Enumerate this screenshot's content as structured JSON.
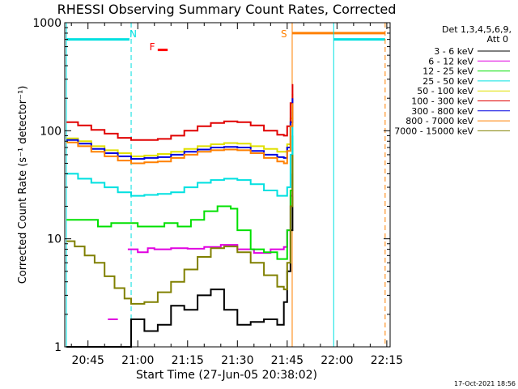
{
  "chart_data": {
    "type": "line",
    "title": "RHESSI Observing Summary Count Rates, Corrected",
    "xlabel": "Start Time (27-Jun-05 20:38:02)",
    "ylabel": "Corrected Count Rate (s⁻¹ detector⁻¹)",
    "yscale": "log",
    "ylim": [
      1,
      1000
    ],
    "xlim": [
      38,
      136
    ],
    "x_unit": "minutes after 20:00 UT",
    "x_ticks": [
      {
        "value": 45,
        "label": "20:45"
      },
      {
        "value": 60,
        "label": "21:00"
      },
      {
        "value": 75,
        "label": "21:15"
      },
      {
        "value": 90,
        "label": "21:30"
      },
      {
        "value": 105,
        "label": "21:45"
      },
      {
        "value": 120,
        "label": "22:00"
      },
      {
        "value": 135,
        "label": "22:15"
      }
    ],
    "y_ticks": [
      {
        "value": 1,
        "label": "1"
      },
      {
        "value": 10,
        "label": "10"
      },
      {
        "value": 100,
        "label": "100"
      },
      {
        "value": 1000,
        "label": "1000"
      }
    ],
    "legend": {
      "header": [
        "Det 1,3,4,5,6,9,",
        "Att 0"
      ],
      "placement": "right"
    },
    "series": [
      {
        "name": "3 - 6 keV",
        "color": "#000000",
        "x": [
          38.5,
          57,
          58,
          62,
          66,
          70,
          74,
          78,
          82,
          86,
          90,
          94,
          98,
          102,
          104,
          105,
          106,
          106.6
        ],
        "y": [
          1,
          1,
          1.8,
          1.4,
          1.6,
          2.4,
          2.2,
          3.0,
          3.4,
          2.2,
          1.6,
          1.7,
          1.8,
          1.6,
          2.6,
          5,
          12,
          40
        ]
      },
      {
        "name": "6 - 12 keV",
        "color": "#e000e0",
        "x": [
          51,
          54,
          56,
          57,
          60,
          63,
          65,
          70,
          75,
          80,
          85,
          90,
          95,
          100,
          104,
          105,
          106,
          106.6
        ],
        "y": [
          1.8,
          1.8,
          null,
          8,
          7.5,
          8.2,
          8.0,
          8.2,
          8.1,
          8.4,
          8.8,
          8.0,
          7.4,
          8.0,
          8.4,
          12,
          25,
          70
        ]
      },
      {
        "name": "12 - 25 keV",
        "color": "#00e000",
        "x": [
          38.5,
          44,
          45,
          48,
          52,
          56,
          60,
          64,
          68,
          72,
          76,
          80,
          84,
          88,
          90,
          94,
          98,
          102,
          104,
          105,
          106,
          106.6
        ],
        "y": [
          15,
          15,
          15,
          13,
          14,
          14,
          13,
          13,
          14,
          13,
          15,
          18,
          20,
          19,
          12,
          8,
          7.5,
          6.5,
          6.5,
          12,
          28,
          90
        ]
      },
      {
        "name": "25 - 50 keV",
        "color": "#00e0e0",
        "x": [
          38.5,
          42,
          46,
          50,
          54,
          58,
          62,
          66,
          70,
          74,
          78,
          82,
          86,
          90,
          94,
          98,
          102,
          104,
          105,
          106,
          106.6
        ],
        "y": [
          40,
          36,
          33,
          30,
          27,
          25,
          25.5,
          26,
          27,
          30,
          33,
          35,
          36,
          35,
          32,
          28,
          25,
          25,
          30,
          60,
          150
        ]
      },
      {
        "name": "50 - 100 keV",
        "color": "#e0e000",
        "x": [
          38.5,
          42,
          46,
          50,
          54,
          58,
          62,
          66,
          70,
          74,
          78,
          82,
          86,
          90,
          94,
          98,
          102,
          104,
          105,
          106,
          106.6
        ],
        "y": [
          85,
          80,
          72,
          66,
          62,
          58,
          59,
          61,
          64,
          68,
          72,
          75,
          77,
          76,
          72,
          68,
          64,
          64,
          75,
          130,
          220
        ]
      },
      {
        "name": "100 - 300 keV",
        "color": "#e00000",
        "x": [
          38.5,
          42,
          46,
          50,
          54,
          58,
          62,
          66,
          70,
          74,
          78,
          82,
          86,
          90,
          94,
          98,
          102,
          104,
          105,
          106,
          106.6
        ],
        "y": [
          120,
          112,
          102,
          94,
          86,
          82,
          82,
          84,
          90,
          100,
          110,
          118,
          122,
          120,
          112,
          100,
          92,
          90,
          110,
          180,
          270
        ]
      },
      {
        "name": "300 - 800 keV",
        "color": "#0000e0",
        "x": [
          38.5,
          42,
          46,
          50,
          54,
          58,
          62,
          66,
          70,
          74,
          78,
          82,
          86,
          90,
          94,
          98,
          102,
          104,
          105,
          106,
          106.6
        ],
        "y": [
          82,
          76,
          68,
          62,
          58,
          55,
          56,
          57,
          60,
          64,
          67,
          70,
          71,
          70,
          65,
          60,
          57,
          56,
          70,
          120,
          200
        ]
      },
      {
        "name": "800 - 7000 keV",
        "color": "#ff8000",
        "x": [
          38.5,
          42,
          46,
          50,
          54,
          58,
          62,
          66,
          70,
          74,
          78,
          82,
          86,
          90,
          94,
          98,
          102,
          104,
          105,
          106,
          106.6
        ],
        "y": [
          78,
          72,
          64,
          58,
          53,
          50,
          51,
          52,
          56,
          60,
          64,
          66,
          67,
          66,
          62,
          56,
          52,
          50,
          65,
          110,
          180
        ]
      },
      {
        "name": "7000 - 15000 keV",
        "color": "#808000",
        "x": [
          38.5,
          41,
          44,
          47,
          50,
          53,
          56,
          58,
          62,
          66,
          70,
          74,
          78,
          82,
          86,
          90,
          94,
          98,
          102,
          104,
          105,
          106,
          106.6
        ],
        "y": [
          9.5,
          8.5,
          7,
          6,
          4.5,
          3.5,
          2.8,
          2.5,
          2.6,
          3.2,
          4.0,
          5.2,
          6.8,
          8.2,
          8.5,
          7.5,
          6.0,
          4.6,
          3.6,
          3.4,
          6,
          20,
          60
        ]
      }
    ],
    "annotations": [
      {
        "label": "N",
        "x": 58,
        "color": "#00e0e0"
      },
      {
        "label": "F",
        "x": 64,
        "color": "#ff0000"
      },
      {
        "label": "S",
        "x": 106.5,
        "color": "#ff8000"
      }
    ],
    "state_bars": [
      {
        "name": "night",
        "color": "#00e0e0",
        "x_start": 38.5,
        "x_end": 57.5,
        "y": 700
      },
      {
        "name": "night",
        "color": "#00e0e0",
        "x_start": 119,
        "x_end": 134.5,
        "y": 700
      },
      {
        "name": "flare",
        "color": "#ff0000",
        "x_start": 66,
        "x_end": 69,
        "y": 560
      },
      {
        "name": "SAA",
        "color": "#ff8000",
        "x_start": 106.5,
        "x_end": 134.5,
        "y": 800
      }
    ],
    "vlines": [
      {
        "x": 38.5,
        "color": "#00e0e0",
        "style": "solid"
      },
      {
        "x": 58,
        "color": "#00e0e0",
        "style": "dashed"
      },
      {
        "x": 106.5,
        "color": "#ff8000",
        "style": "solid"
      },
      {
        "x": 119,
        "color": "#00e0e0",
        "style": "solid"
      },
      {
        "x": 134.5,
        "color": "#ff8000",
        "style": "dashed"
      }
    ],
    "footer": "17-Oct-2021 18:56"
  }
}
